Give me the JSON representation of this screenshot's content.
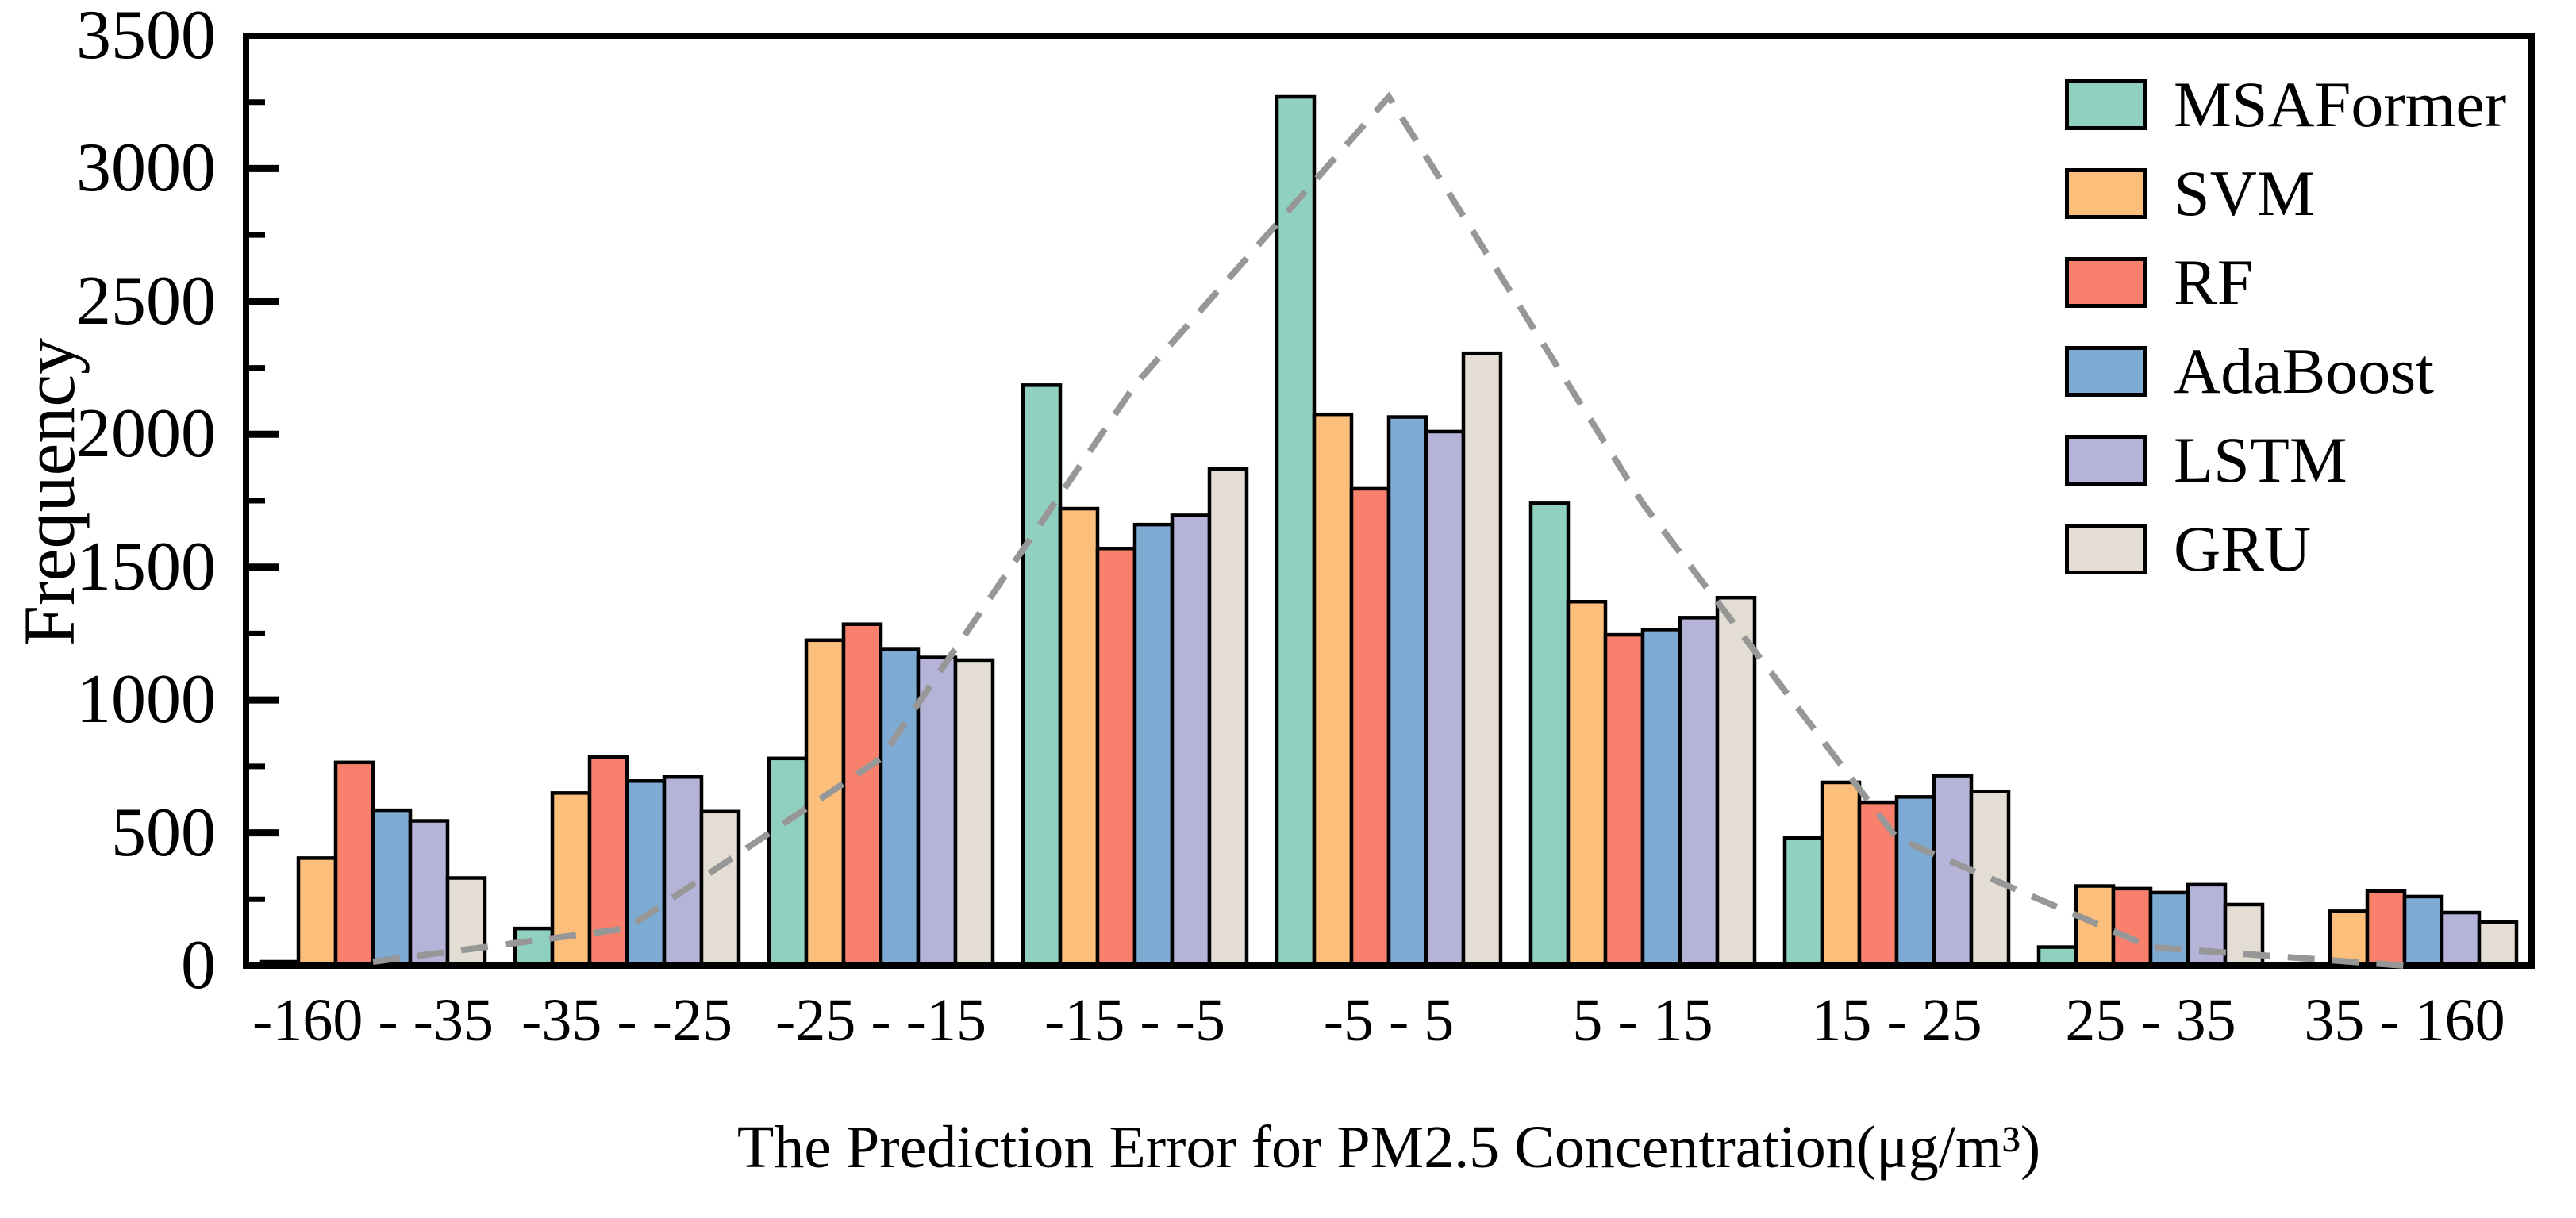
{
  "figure": {
    "background": "#ffffff",
    "text_color": "#000000"
  },
  "chart_data": {
    "type": "bar",
    "title": "",
    "xlabel": "The Prediction Error for PM2.5 Concentration(μg/m³)",
    "ylabel": "Frequency",
    "ylim": [
      0,
      3500
    ],
    "ytick_major_step": 500,
    "ytick_minor_step": 250,
    "yticks": [
      0,
      500,
      1000,
      1500,
      2000,
      2500,
      3000,
      3500
    ],
    "grid": false,
    "legend_position": "top-right-inside",
    "categories": [
      "-160 - -35",
      "-35 - -25",
      "-25 - -15",
      "-15 - -5",
      "-5 - 5",
      "5 - 15",
      "15 - 25",
      "25 - 35",
      "35 - 160"
    ],
    "series": [
      {
        "name": "MSAFormer",
        "color": "#8fd0c1",
        "values": [
          15,
          140,
          780,
          2185,
          3270,
          1740,
          480,
          70,
          0
        ]
      },
      {
        "name": "SVM",
        "color": "#fcbe7b",
        "values": [
          405,
          650,
          1225,
          1720,
          2075,
          1370,
          690,
          300,
          205
        ]
      },
      {
        "name": "RF",
        "color": "#f8806d",
        "values": [
          765,
          785,
          1285,
          1570,
          1795,
          1245,
          615,
          290,
          280
        ]
      },
      {
        "name": "AdaBoost",
        "color": "#7dabd3",
        "values": [
          585,
          695,
          1190,
          1660,
          2065,
          1265,
          635,
          275,
          260
        ]
      },
      {
        "name": "LSTM",
        "color": "#b6b3d8",
        "values": [
          545,
          710,
          1160,
          1695,
          2010,
          1310,
          715,
          305,
          200
        ]
      },
      {
        "name": "GRU",
        "color": "#e4ddd3",
        "values": [
          330,
          580,
          1150,
          1870,
          2305,
          1385,
          655,
          230,
          165
        ]
      }
    ],
    "overlay_line": {
      "follows_series": "MSAFormer",
      "style": "dashed",
      "color": "#979797"
    },
    "bar_edge_color": "#000000",
    "axis_color": "#000000"
  }
}
